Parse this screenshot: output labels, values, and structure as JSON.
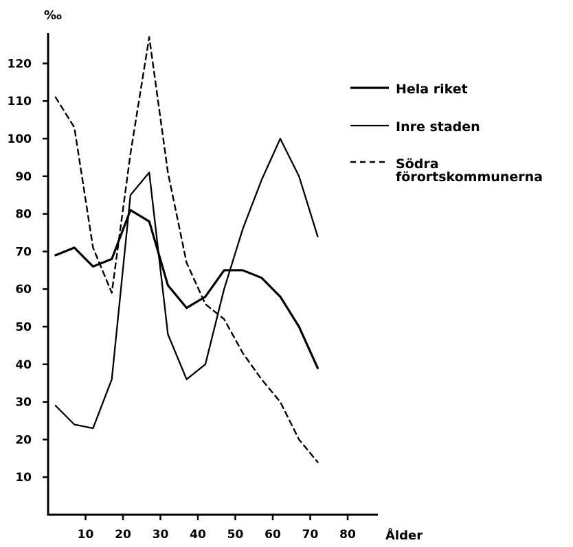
{
  "chart_data": {
    "type": "line",
    "ylabel": "‰",
    "xlabel": "Ålder",
    "xlim": [
      0,
      90
    ],
    "ylim": [
      0,
      130
    ],
    "x_ticks": [
      "10",
      "20",
      "30",
      "40",
      "50",
      "60",
      "70",
      "80"
    ],
    "y_ticks": [
      "10",
      "20",
      "30",
      "40",
      "50",
      "60",
      "70",
      "80",
      "90",
      "100",
      "110",
      "120"
    ],
    "legend_position": "right",
    "series": [
      {
        "name": "Hela riket",
        "style": "solid-thick",
        "x": [
          2,
          7,
          12,
          17,
          22,
          27,
          32,
          37,
          42,
          47,
          52,
          57,
          62,
          67,
          72
        ],
        "y": [
          69,
          71,
          66,
          68,
          81,
          78,
          61,
          55,
          58,
          65,
          65,
          63,
          58,
          50,
          39
        ]
      },
      {
        "name": "Inre staden",
        "style": "solid",
        "x": [
          2,
          7,
          12,
          17,
          22,
          27,
          32,
          37,
          42,
          47,
          52,
          57,
          62,
          67,
          72
        ],
        "y": [
          29,
          24,
          23,
          36,
          85,
          91,
          48,
          36,
          40,
          60,
          76,
          89,
          100,
          90,
          74
        ]
      },
      {
        "name": "Södra förortskommunerna",
        "label_lines": [
          "Södra",
          "förortskommunerna"
        ],
        "style": "dashed",
        "x": [
          2,
          7,
          12,
          17,
          22,
          27,
          32,
          37,
          42,
          47,
          52,
          57,
          62,
          67,
          72
        ],
        "y": [
          111,
          103,
          71,
          59,
          96,
          127,
          91,
          67,
          56,
          52,
          43,
          36,
          30,
          20,
          14
        ]
      }
    ]
  }
}
